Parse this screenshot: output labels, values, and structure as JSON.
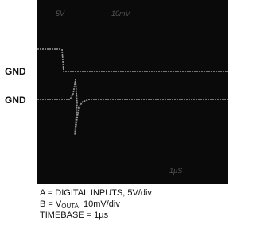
{
  "scope": {
    "channel_a_scale": "5V",
    "channel_b_scale": "10mV",
    "timebase_mark": "1µS",
    "ground_labels": [
      "GND",
      "GND"
    ]
  },
  "caption": {
    "line_a": "A = DIGITAL INPUTS, 5V/div",
    "line_b": {
      "prefix": "B = V",
      "subscript": "OUTA",
      "suffix": ", 10mV/div"
    },
    "line_c": "TIMEBASE = 1µs"
  }
}
